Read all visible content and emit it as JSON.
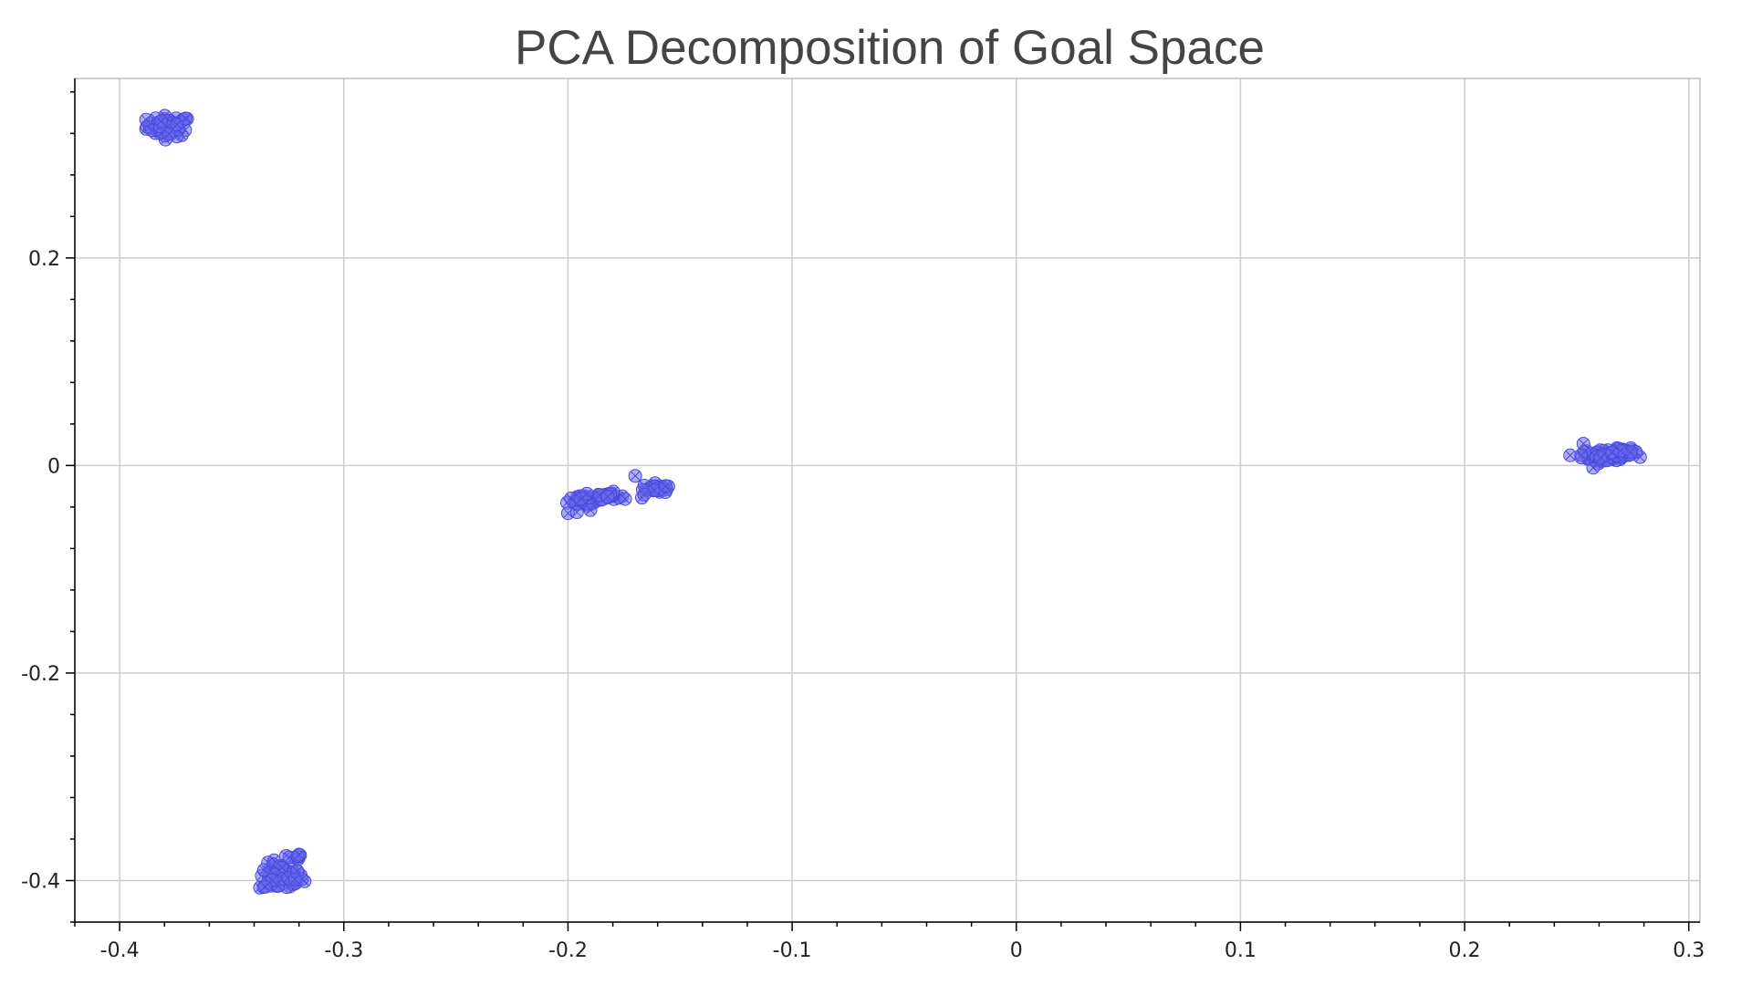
{
  "chart_data": {
    "type": "scatter",
    "title": "PCA Decomposition of Goal Space",
    "xlabel": "",
    "ylabel": "",
    "xlim": [
      -0.42,
      0.305
    ],
    "ylim": [
      -0.44,
      0.373
    ],
    "grid": true,
    "x_ticks": [
      -0.4,
      -0.3,
      -0.2,
      -0.1,
      0,
      0.1,
      0.2,
      0.3
    ],
    "x_tick_labels": [
      "-0.4",
      "-0.3",
      "-0.2",
      "-0.1",
      "0",
      "0.1",
      "0.2",
      "0.3"
    ],
    "y_ticks": [
      -0.4,
      -0.2,
      0,
      0.2
    ],
    "y_tick_labels": [
      "-0.4",
      "-0.2",
      "0",
      "0.2"
    ],
    "marker_color": "#6b6bf2",
    "marker_edge_color": "#4a4ad9",
    "marker": "circle-x",
    "clusters": [
      {
        "x_center": -0.378,
        "y_center": 0.327,
        "x_spread": 0.009,
        "y_spread": 0.009,
        "n": 60
      },
      {
        "x_center": -0.328,
        "y_center": -0.397,
        "x_spread": 0.009,
        "y_spread": 0.012,
        "n": 60
      },
      {
        "x_center": -0.322,
        "y_center": -0.378,
        "x_spread": 0.003,
        "y_spread": 0.003,
        "n": 8
      },
      {
        "x_center": -0.192,
        "y_center": -0.033,
        "x_spread": 0.007,
        "y_spread": 0.006,
        "n": 45
      },
      {
        "x_center": -0.182,
        "y_center": -0.029,
        "x_spread": 0.005,
        "y_spread": 0.003,
        "n": 25
      },
      {
        "x_center": -0.161,
        "y_center": -0.022,
        "x_spread": 0.005,
        "y_spread": 0.004,
        "n": 25
      },
      {
        "x_center": 0.263,
        "y_center": 0.009,
        "x_spread": 0.01,
        "y_spread": 0.006,
        "n": 60
      },
      {
        "x_center": 0.271,
        "y_center": 0.013,
        "x_spread": 0.006,
        "y_spread": 0.003,
        "n": 20
      }
    ],
    "points": [
      {
        "x": -0.2,
        "y": -0.046
      },
      {
        "x": -0.196,
        "y": -0.045
      },
      {
        "x": -0.19,
        "y": -0.043
      },
      {
        "x": -0.17,
        "y": -0.01
      },
      {
        "x": -0.167,
        "y": -0.031
      },
      {
        "x": -0.166,
        "y": -0.028
      },
      {
        "x": 0.253,
        "y": 0.021
      },
      {
        "x": 0.252,
        "y": 0.01
      },
      {
        "x": -0.335,
        "y": -0.406
      },
      {
        "x": -0.32,
        "y": -0.375
      }
    ]
  }
}
